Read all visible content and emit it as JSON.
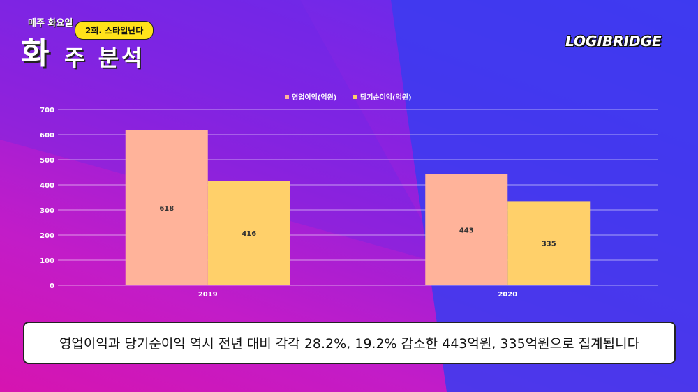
{
  "header": {
    "small_title": "매주 화요일",
    "bubble": "2회. 스타일난다",
    "big_char": "화",
    "title_rest": "주 분석",
    "brand": "LOGIBRIDGE"
  },
  "chart_data": {
    "type": "bar",
    "categories": [
      "2019",
      "2020"
    ],
    "series": [
      {
        "name": "영업이익(억원)",
        "values": [
          618,
          443
        ],
        "color": "#ffb39a"
      },
      {
        "name": "당기순이익(억원)",
        "values": [
          416,
          335
        ],
        "color": "#ffd06a"
      }
    ],
    "ylim": [
      0,
      700
    ],
    "yticks": [
      "0",
      "100",
      "200",
      "300",
      "400",
      "500",
      "600",
      "700"
    ],
    "grid": true,
    "legend": "top-center"
  },
  "caption": "영업이익과 당기순이익 역시 전년 대비 각각 28.2%, 19.2% 감소한 443억원, 335억원으로 집계됩니다"
}
